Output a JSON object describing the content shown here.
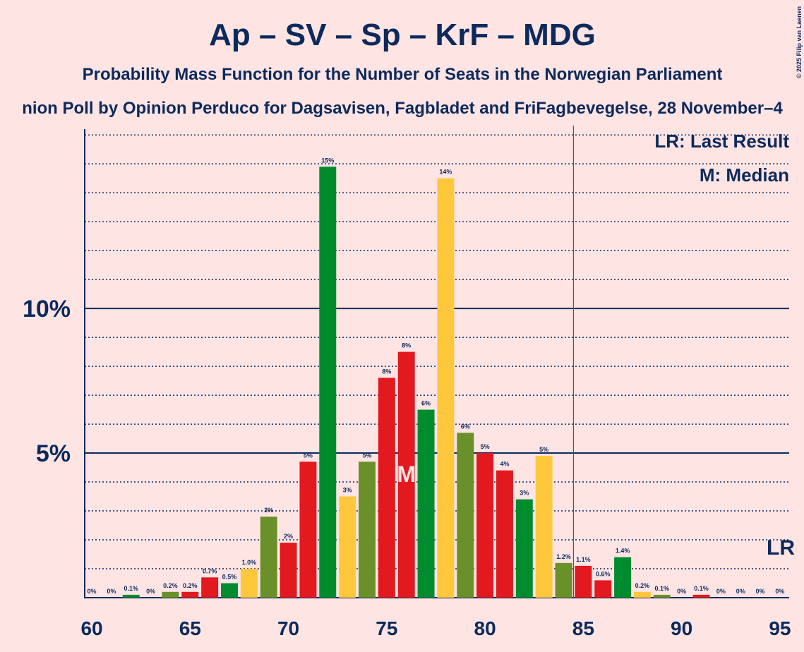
{
  "chart_data": {
    "type": "bar",
    "title": "Ap – SV – Sp – KrF – MDG",
    "subtitle": "Probability Mass Function for the Number of Seats in the Norwegian Parliament",
    "subtitle2": "nion Poll by Opinion Perduco for Dagsavisen, Fagbladet and FriFagbevegelse, 28 November–4",
    "copyright": "© 2025 Filip van Laenen",
    "legend": [
      "LR: Last Result",
      "M: Median"
    ],
    "x": [
      60,
      61,
      62,
      63,
      64,
      65,
      66,
      67,
      68,
      69,
      70,
      71,
      72,
      73,
      74,
      75,
      76,
      77,
      78,
      79,
      80,
      81,
      82,
      83,
      84,
      85,
      86,
      87,
      88,
      89,
      90,
      91,
      92,
      93,
      94,
      95
    ],
    "values": [
      0,
      0,
      0.1,
      0,
      0.2,
      0.2,
      0.7,
      0.5,
      1.0,
      2.8,
      1.9,
      4.7,
      14.9,
      3.5,
      4.7,
      7.6,
      8.5,
      6.5,
      14.5,
      5.7,
      5.0,
      4.4,
      3.4,
      4.9,
      1.2,
      1.1,
      0.6,
      1.4,
      0.2,
      0.1,
      0,
      0.1,
      0,
      0,
      0,
      0
    ],
    "value_labels": [
      "0%",
      "0%",
      "0.1%",
      "0%",
      "0.2%",
      "0.2%",
      "0.7%",
      "0.5%",
      "1.0%",
      "3%",
      "2%",
      "5%",
      "15%",
      "3%",
      "5%",
      "8%",
      "8%",
      "6%",
      "14%",
      "6%",
      "5%",
      "4%",
      "3%",
      "5%",
      "1.2%",
      "1.1%",
      "0.6%",
      "1.4%",
      "0.2%",
      "0.1%",
      "0%",
      "0.1%",
      "0%",
      "0%",
      "0%",
      "0%"
    ],
    "colors": [
      "#e2191f",
      "#e2191f",
      "#008c2e",
      "#ffc83c",
      "#6a902a",
      "#e2191f",
      "#e2191f",
      "#008c2e",
      "#ffc83c",
      "#6a902a",
      "#e2191f",
      "#e2191f",
      "#008c2e",
      "#ffc83c",
      "#6a902a",
      "#e2191f",
      "#e2191f",
      "#008c2e",
      "#ffc83c",
      "#6a902a",
      "#e2191f",
      "#e2191f",
      "#008c2e",
      "#ffc83c",
      "#6a902a",
      "#e2191f",
      "#e2191f",
      "#008c2e",
      "#ffc83c",
      "#6a902a",
      "#e2191f",
      "#e2191f",
      "#008c2e",
      "#ffc83c",
      "#6a902a",
      "#e2191f"
    ],
    "xlim": [
      59.64,
      95.47
    ],
    "xticks": [
      60,
      65,
      70,
      75,
      80,
      85,
      90,
      95
    ],
    "ylim": [
      0,
      16.2
    ],
    "yticks": [
      {
        "value": 5,
        "label": "5%"
      },
      {
        "value": 10,
        "label": "10%"
      }
    ],
    "minor_yticks": [
      1,
      2,
      3,
      4,
      6,
      7,
      8,
      9,
      11,
      12,
      13,
      14,
      15,
      16
    ],
    "last_result": 84.5,
    "last_result_label": "LR",
    "median": 76,
    "median_label": "M"
  }
}
